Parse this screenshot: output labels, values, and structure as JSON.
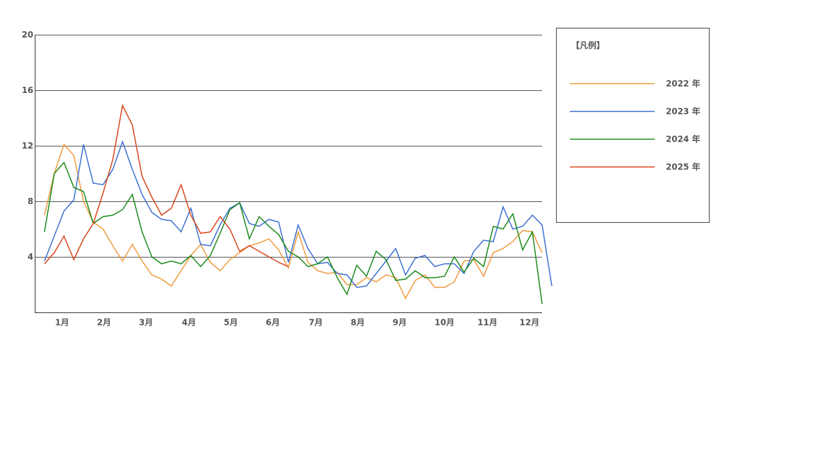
{
  "chart_data": {
    "type": "line",
    "legend_title": "【凡例】",
    "legend": "right",
    "grid": true,
    "x": [
      1,
      2,
      3,
      4,
      5,
      6,
      7,
      8,
      9,
      10,
      11,
      12,
      13,
      14,
      15,
      16,
      17,
      18,
      19,
      20,
      21,
      22,
      23,
      24,
      25,
      26,
      27,
      28,
      29,
      30,
      31,
      32,
      33,
      34,
      35,
      36,
      37,
      38,
      39,
      40,
      41,
      42,
      43,
      44,
      45,
      46,
      47,
      48,
      49,
      50,
      51,
      52,
      53
    ],
    "xlim": [
      0,
      52
    ],
    "xticks": [
      {
        "value": 2.8,
        "label": "1月"
      },
      {
        "value": 7.1,
        "label": "2月"
      },
      {
        "value": 11.4,
        "label": "3月"
      },
      {
        "value": 15.8,
        "label": "4月"
      },
      {
        "value": 20.1,
        "label": "5月"
      },
      {
        "value": 24.4,
        "label": "6月"
      },
      {
        "value": 28.8,
        "label": "7月"
      },
      {
        "value": 33.1,
        "label": "8月"
      },
      {
        "value": 37.4,
        "label": "9月"
      },
      {
        "value": 42,
        "label": "10月"
      },
      {
        "value": 46.4,
        "label": "11月"
      },
      {
        "value": 50.7,
        "label": "12月"
      }
    ],
    "ylim": [
      0,
      20
    ],
    "yticks": [
      4,
      8,
      12,
      16,
      20
    ],
    "series": [
      {
        "name": "2022 年",
        "color": "#f09a3e",
        "values": [
          7.0,
          10.0,
          12.1,
          11.3,
          8.0,
          6.5,
          6.0,
          4.8,
          3.7,
          4.9,
          3.7,
          2.7,
          2.4,
          1.9,
          3.0,
          4.1,
          4.9,
          3.6,
          3.0,
          3.8,
          4.3,
          4.8,
          5.0,
          5.3,
          4.5,
          3.2,
          5.8,
          3.6,
          3.0,
          2.8,
          2.9,
          2.0,
          2.0,
          2.5,
          2.2,
          2.7,
          2.5,
          1.0,
          2.3,
          2.7,
          1.8,
          1.8,
          2.2,
          3.7,
          3.8,
          2.6,
          4.3,
          4.6,
          5.1,
          5.9,
          5.8,
          4.3,
          null
        ]
      },
      {
        "name": "2023 年",
        "color": "#3b6fd1",
        "values": [
          3.7,
          5.5,
          7.3,
          8.1,
          12.1,
          9.3,
          9.2,
          10.3,
          12.3,
          10.3,
          8.5,
          7.2,
          6.7,
          6.6,
          5.8,
          7.5,
          4.9,
          4.8,
          6.3,
          7.5,
          7.9,
          6.4,
          6.2,
          6.7,
          6.5,
          3.6,
          6.3,
          4.6,
          3.5,
          3.6,
          2.8,
          2.7,
          1.8,
          1.9,
          2.8,
          3.7,
          4.6,
          2.7,
          3.9,
          4.1,
          3.3,
          3.5,
          3.5,
          2.8,
          4.4,
          5.2,
          5.1,
          7.6,
          6.0,
          6.2,
          7.0,
          6.3,
          1.9
        ]
      },
      {
        "name": "2024 年",
        "color": "#1a8a1a",
        "values": [
          5.8,
          10.0,
          10.8,
          9.0,
          8.7,
          6.4,
          6.9,
          7.0,
          7.4,
          8.5,
          5.8,
          4.0,
          3.5,
          3.7,
          3.5,
          4.1,
          3.3,
          4.1,
          5.7,
          7.4,
          7.9,
          5.3,
          6.9,
          6.2,
          5.6,
          4.4,
          4.0,
          3.3,
          3.5,
          4.0,
          2.5,
          1.3,
          3.4,
          2.6,
          4.4,
          3.8,
          2.3,
          2.4,
          3.0,
          2.5,
          2.5,
          2.6,
          4.0,
          2.9,
          3.9,
          3.3,
          6.2,
          6.0,
          7.1,
          4.5,
          5.8,
          0.6,
          null
        ]
      },
      {
        "name": "2025 年",
        "color": "#d8441a",
        "values": [
          3.5,
          4.3,
          5.5,
          3.8,
          5.3,
          6.4,
          8.6,
          11.0,
          14.9,
          13.5,
          9.8,
          8.3,
          7.0,
          7.5,
          9.2,
          7.0,
          5.7,
          5.8,
          6.9,
          6.0,
          4.4,
          4.8,
          4.4,
          4.0,
          3.6,
          3.3,
          null,
          null,
          null,
          null,
          null,
          null,
          null,
          null,
          null,
          null,
          null,
          null,
          null,
          null,
          null,
          null,
          null,
          null,
          null,
          null,
          null,
          null,
          null,
          null,
          null,
          null,
          null
        ]
      }
    ]
  }
}
